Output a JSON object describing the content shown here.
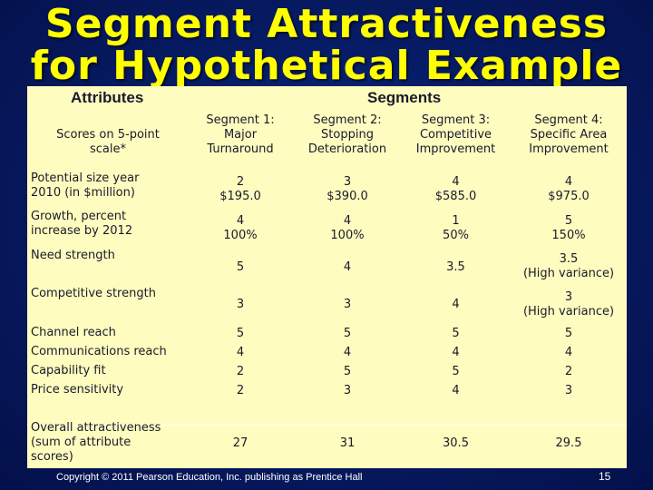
{
  "title": {
    "line1": "Segment Attractiveness",
    "line2": "for Hypothetical Example"
  },
  "table": {
    "attributes_header": "Attributes",
    "segments_header": "Segments",
    "scale_note": "Scores on 5-point\nscale*",
    "segments": [
      "Segment 1:\nMajor\nTurnaround",
      "Segment 2:\nStopping\nDeterioration",
      "Segment 3:\nCompetitive\nImprovement",
      "Segment 4:\nSpecific Area\nImprovement"
    ],
    "rows": [
      {
        "label": "Potential size year\n2010 (in $million)",
        "values": [
          "2\n$195.0",
          "3\n$390.0",
          "4\n$585.0",
          "4\n$975.0"
        ]
      },
      {
        "label": "Growth, percent\nincrease by 2012",
        "values": [
          "4\n100%",
          "4\n100%",
          "1\n50%",
          "5\n150%"
        ]
      },
      {
        "label": "Need strength",
        "values": [
          "5",
          "4",
          "3.5",
          "3.5\n(High variance)"
        ]
      },
      {
        "label": "Competitive strength",
        "values": [
          "3",
          "3",
          "4",
          "3\n(High variance)"
        ]
      },
      {
        "label": "Channel reach",
        "values": [
          "5",
          "5",
          "5",
          "5"
        ]
      },
      {
        "label": "Communications reach",
        "values": [
          "4",
          "4",
          "4",
          "4"
        ]
      },
      {
        "label": "Capability fit",
        "values": [
          "2",
          "5",
          "5",
          "2"
        ]
      },
      {
        "label": "Price sensitivity",
        "values": [
          "2",
          "3",
          "4",
          "3"
        ]
      },
      {
        "label": "Overall attractiveness\n(sum of attribute\nscores)",
        "values": [
          "27",
          "31",
          "30.5",
          "29.5"
        ]
      }
    ]
  },
  "footer": {
    "copyright": "Copyright © 2011 Pearson Education, Inc. publishing as Prentice Hall",
    "page": "15"
  }
}
